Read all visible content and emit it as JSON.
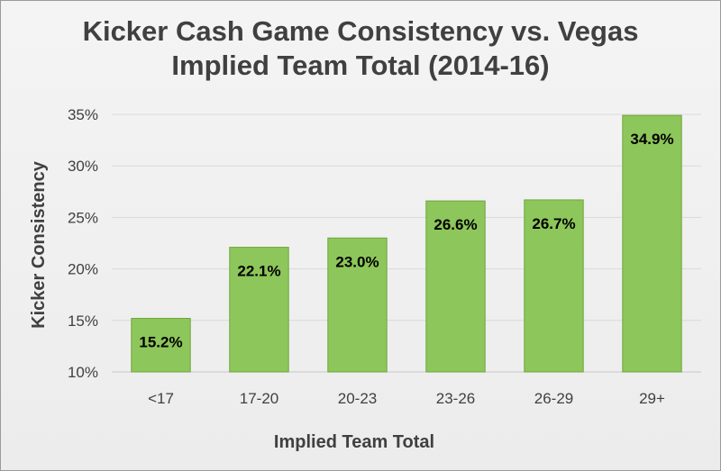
{
  "chart_data": {
    "type": "bar",
    "title_line1": "Kicker Cash Game Consistency vs. Vegas",
    "title_line2": "Implied Team Total (2014-16)",
    "xlabel": "Implied Team Total",
    "ylabel": "Kicker Consistency",
    "categories": [
      "<17",
      "17-20",
      "20-23",
      "23-26",
      "26-29",
      "29+"
    ],
    "values": [
      15.2,
      22.1,
      23.0,
      26.6,
      26.7,
      34.9
    ],
    "data_labels": [
      "15.2%",
      "22.1%",
      "23.0%",
      "26.6%",
      "26.7%",
      "34.9%"
    ],
    "ylim": [
      10,
      35
    ],
    "y_ticks": [
      10,
      15,
      20,
      25,
      30,
      35
    ],
    "y_tick_labels": [
      "10%",
      "15%",
      "20%",
      "25%",
      "30%",
      "35%"
    ],
    "grid": true,
    "legend": "none",
    "bar_color": "#8dc65a",
    "bar_edge_color": "#6fa63d"
  }
}
